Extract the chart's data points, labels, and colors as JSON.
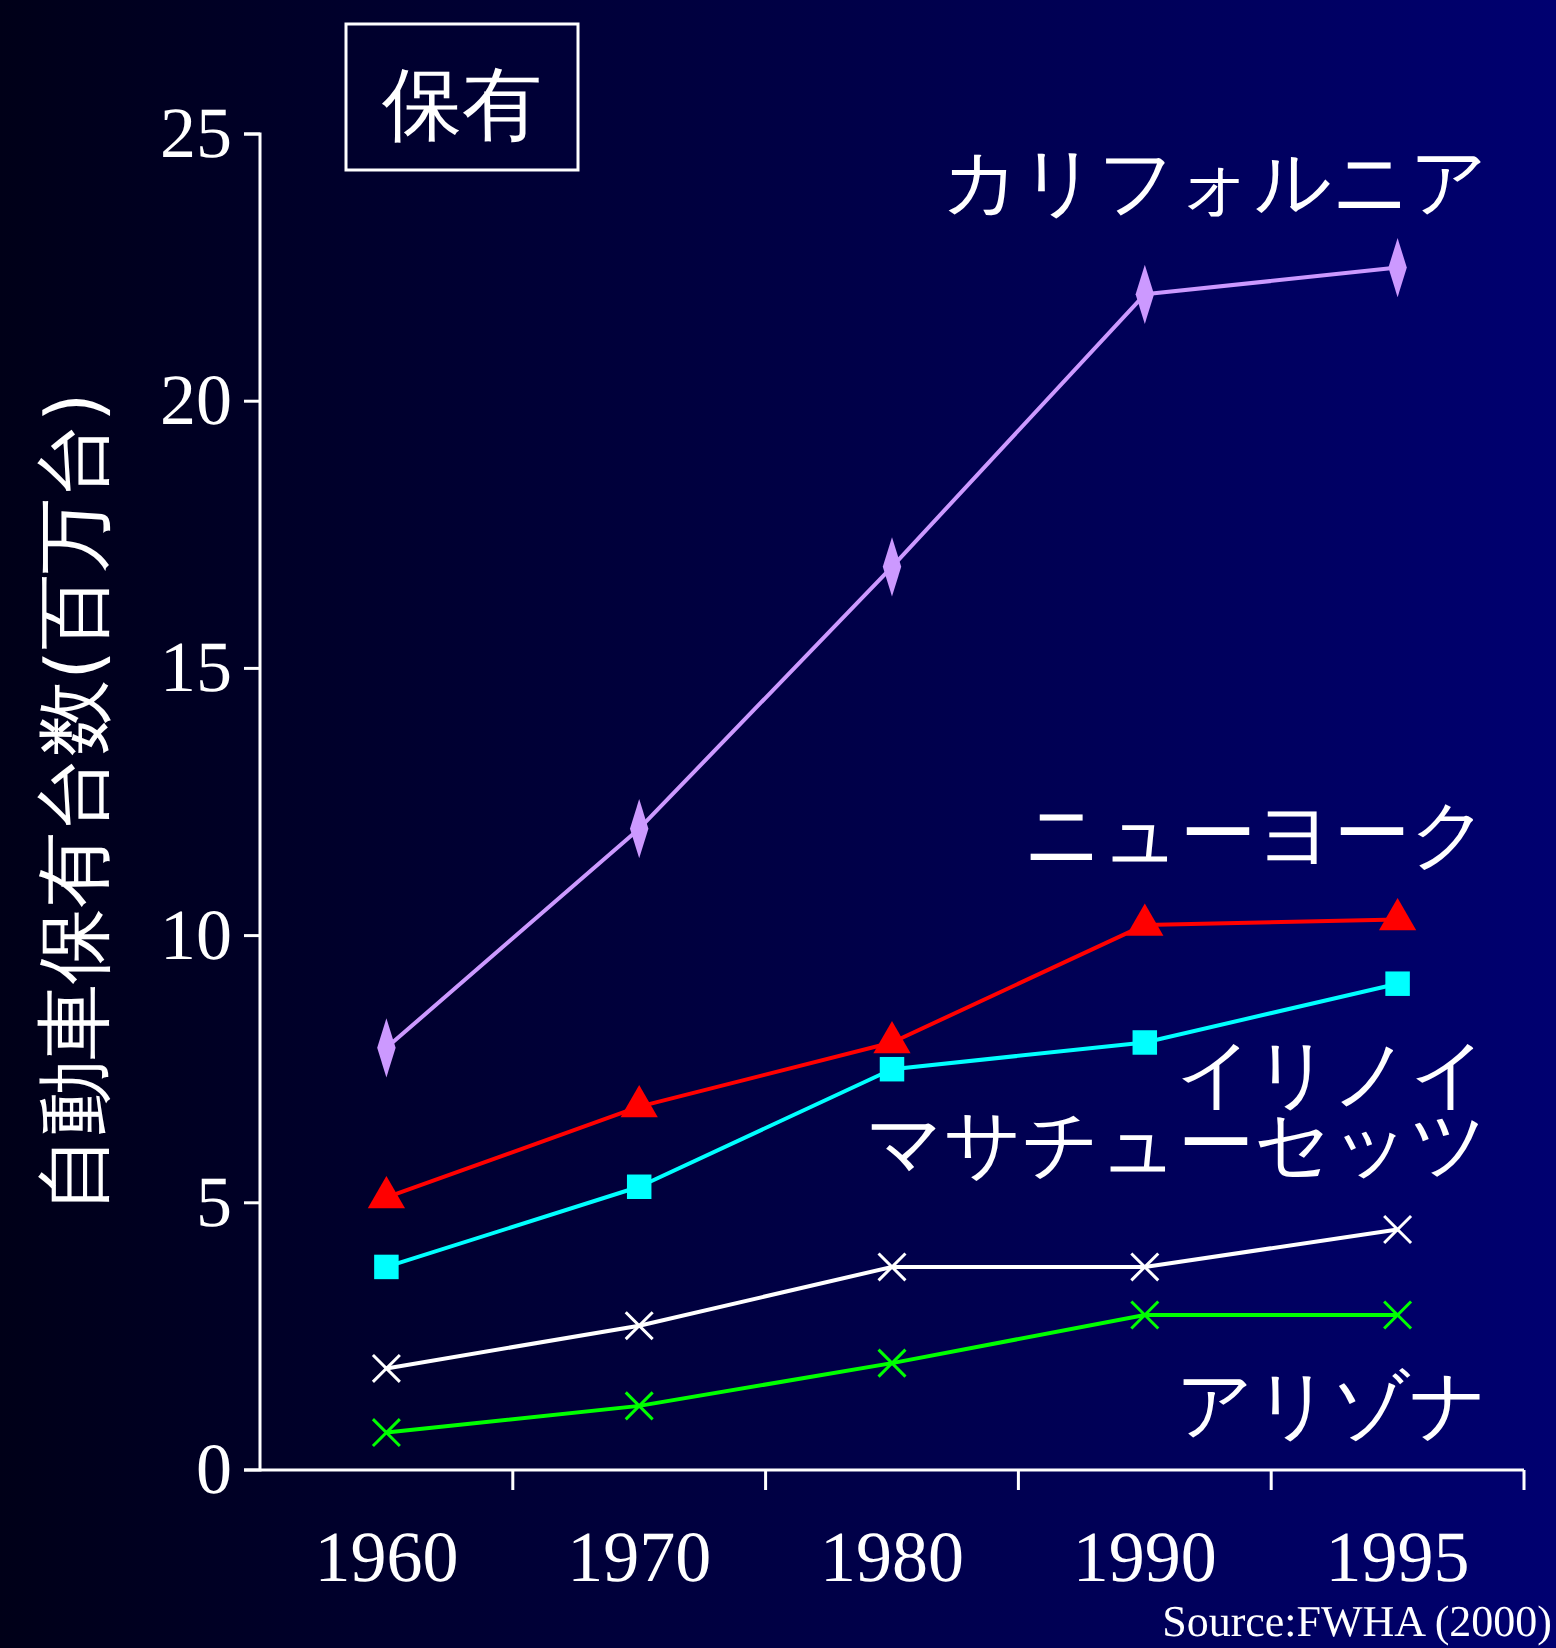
{
  "chart_data": {
    "type": "line",
    "title": "保有",
    "ylabel": "自動車保有台数(百万台)",
    "categories": [
      "1960",
      "1970",
      "1980",
      "1990",
      "1995"
    ],
    "ylim": [
      0,
      25
    ],
    "yticks": [
      0,
      5,
      10,
      15,
      20,
      25
    ],
    "grid": false,
    "legend": false,
    "line_style": "solid",
    "series": [
      {
        "name": "カリフォルニア",
        "color": "#cc99ff",
        "marker": "diamond",
        "values": [
          7.9,
          12.0,
          16.9,
          22.0,
          22.5
        ]
      },
      {
        "name": "ニューヨーク",
        "color": "#ff0000",
        "marker": "triangle",
        "values": [
          5.1,
          6.8,
          8.0,
          10.2,
          10.3
        ]
      },
      {
        "name": "イリノイ",
        "color": "#00ffff",
        "marker": "square",
        "values": [
          3.8,
          5.3,
          7.5,
          8.0,
          9.1
        ]
      },
      {
        "name": "マサチューセッツ",
        "color": "#ffffff",
        "marker": "cross",
        "values": [
          1.9,
          2.7,
          3.8,
          3.8,
          4.5
        ]
      },
      {
        "name": "アリゾナ",
        "color": "#00ff00",
        "marker": "cross",
        "values": [
          0.7,
          1.2,
          2.0,
          2.9,
          2.9
        ]
      }
    ],
    "annotations": [
      "Source:FWHA (2000)"
    ]
  }
}
